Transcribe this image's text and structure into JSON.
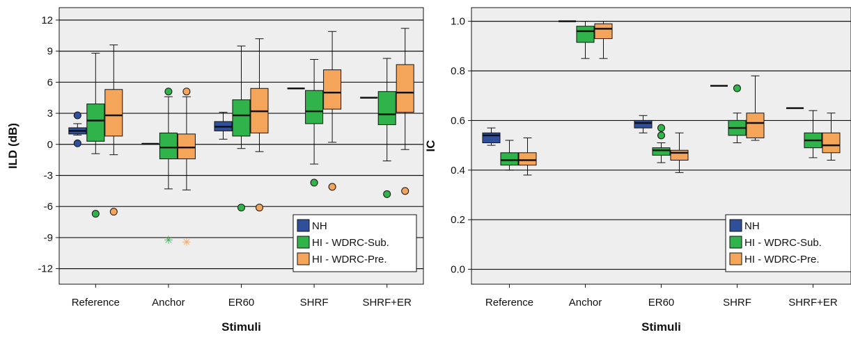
{
  "colors": {
    "nh": "#2f4f9a",
    "sub": "#2fb34a",
    "pre": "#f5a55a",
    "panel_bg": "#eeeeee",
    "grid": "#111111"
  },
  "chart_data": [
    {
      "type": "box",
      "xlabel": "Stimuli",
      "ylabel": "ILD (dB)",
      "ylim": [
        -13.5,
        13.2
      ],
      "yticks": [
        -12,
        -9,
        -6,
        -3,
        0,
        3,
        6,
        9,
        12
      ],
      "ytick_labels": [
        "-12",
        "-9",
        "-6",
        "-3",
        "0",
        "3",
        "6",
        "9",
        "12"
      ],
      "grid": true,
      "legend_position": "bottom-right",
      "categories": [
        "Reference",
        "Anchor",
        "ER60",
        "SHRF",
        "SHRF+ER"
      ],
      "series": [
        {
          "name": "NH",
          "color_key": "nh",
          "boxes": [
            {
              "min": 0.9,
              "q1": 1.0,
              "median": 1.3,
              "q3": 1.6,
              "max": 2.0,
              "outliers": [
                {
                  "value": 2.8,
                  "marker": "circle"
                },
                {
                  "value": 0.1,
                  "marker": "circle"
                }
              ]
            },
            {
              "min": 0.05,
              "q1": 0.05,
              "median": 0.05,
              "q3": 0.05,
              "max": 0.05,
              "outliers": []
            },
            {
              "min": 0.5,
              "q1": 1.3,
              "median": 1.7,
              "q3": 2.2,
              "max": 3.1,
              "outliers": []
            },
            {
              "min": 5.4,
              "q1": 5.4,
              "median": 5.4,
              "q3": 5.4,
              "max": 5.4,
              "outliers": []
            },
            {
              "min": 4.5,
              "q1": 4.5,
              "median": 4.5,
              "q3": 4.5,
              "max": 4.5,
              "outliers": []
            }
          ]
        },
        {
          "name": "HI - WDRC-Sub.",
          "color_key": "sub",
          "boxes": [
            {
              "min": -0.9,
              "q1": 0.3,
              "median": 2.3,
              "q3": 3.9,
              "max": 8.8,
              "outliers": [
                {
                  "value": -6.7,
                  "marker": "circle"
                }
              ]
            },
            {
              "min": -4.3,
              "q1": -1.4,
              "median": -0.3,
              "q3": 1.1,
              "max": 4.6,
              "outliers": [
                {
                  "value": 5.1,
                  "marker": "circle"
                },
                {
                  "value": -9.2,
                  "marker": "star"
                }
              ]
            },
            {
              "min": -0.4,
              "q1": 0.8,
              "median": 2.8,
              "q3": 4.3,
              "max": 9.5,
              "outliers": [
                {
                  "value": -6.1,
                  "marker": "circle"
                }
              ]
            },
            {
              "min": -1.9,
              "q1": 2.0,
              "median": 3.2,
              "q3": 5.2,
              "max": 8.2,
              "outliers": [
                {
                  "value": -3.7,
                  "marker": "circle"
                }
              ]
            },
            {
              "min": -1.6,
              "q1": 1.9,
              "median": 2.9,
              "q3": 5.1,
              "max": 8.3,
              "outliers": [
                {
                  "value": -4.8,
                  "marker": "circle"
                }
              ]
            }
          ]
        },
        {
          "name": "HI - WDRC-Pre.",
          "color_key": "pre",
          "boxes": [
            {
              "min": -1.0,
              "q1": 0.8,
              "median": 2.8,
              "q3": 5.3,
              "max": 9.6,
              "outliers": [
                {
                  "value": -6.5,
                  "marker": "circle"
                }
              ]
            },
            {
              "min": -4.4,
              "q1": -1.4,
              "median": -0.3,
              "q3": 1.0,
              "max": 4.6,
              "outliers": [
                {
                  "value": 5.1,
                  "marker": "circle"
                },
                {
                  "value": -9.4,
                  "marker": "star"
                }
              ]
            },
            {
              "min": -0.7,
              "q1": 1.1,
              "median": 3.2,
              "q3": 5.4,
              "max": 10.2,
              "outliers": [
                {
                  "value": -6.1,
                  "marker": "circle"
                }
              ]
            },
            {
              "min": 0.2,
              "q1": 3.4,
              "median": 5.0,
              "q3": 7.2,
              "max": 10.9,
              "outliers": [
                {
                  "value": -4.1,
                  "marker": "circle"
                }
              ]
            },
            {
              "min": -0.5,
              "q1": 3.1,
              "median": 5.0,
              "q3": 7.7,
              "max": 11.2,
              "outliers": [
                {
                  "value": -4.5,
                  "marker": "circle"
                }
              ]
            }
          ]
        }
      ]
    },
    {
      "type": "box",
      "xlabel": "Stimuli",
      "ylabel": "IC",
      "ylim": [
        -0.06,
        1.055
      ],
      "yticks": [
        0.0,
        0.2,
        0.4,
        0.6,
        0.8,
        1.0
      ],
      "ytick_labels": [
        "0.0",
        "0.2",
        "0.4",
        "0.6",
        "0.8",
        "1.0"
      ],
      "grid": true,
      "legend_position": "bottom-right",
      "categories": [
        "Reference",
        "Anchor",
        "ER60",
        "SHRF",
        "SHRF+ER"
      ],
      "series": [
        {
          "name": "NH",
          "color_key": "nh",
          "boxes": [
            {
              "min": 0.5,
              "q1": 0.51,
              "median": 0.54,
              "q3": 0.55,
              "max": 0.57,
              "outliers": []
            },
            {
              "min": 1.0,
              "q1": 1.0,
              "median": 1.0,
              "q3": 1.0,
              "max": 1.0,
              "outliers": []
            },
            {
              "min": 0.55,
              "q1": 0.57,
              "median": 0.59,
              "q3": 0.6,
              "max": 0.62,
              "outliers": []
            },
            {
              "min": 0.74,
              "q1": 0.74,
              "median": 0.74,
              "q3": 0.74,
              "max": 0.74,
              "outliers": []
            },
            {
              "min": 0.65,
              "q1": 0.65,
              "median": 0.65,
              "q3": 0.65,
              "max": 0.65,
              "outliers": []
            }
          ]
        },
        {
          "name": "HI - WDRC-Sub.",
          "color_key": "sub",
          "boxes": [
            {
              "min": 0.4,
              "q1": 0.42,
              "median": 0.44,
              "q3": 0.47,
              "max": 0.52,
              "outliers": []
            },
            {
              "min": 0.85,
              "q1": 0.915,
              "median": 0.96,
              "q3": 0.98,
              "max": 1.0,
              "outliers": []
            },
            {
              "min": 0.43,
              "q1": 0.46,
              "median": 0.48,
              "q3": 0.49,
              "max": 0.51,
              "outliers": [
                {
                  "value": 0.57,
                  "marker": "circle"
                },
                {
                  "value": 0.54,
                  "marker": "circle"
                }
              ]
            },
            {
              "min": 0.51,
              "q1": 0.54,
              "median": 0.57,
              "q3": 0.6,
              "max": 0.63,
              "outliers": [
                {
                  "value": 0.73,
                  "marker": "circle"
                }
              ]
            },
            {
              "min": 0.45,
              "q1": 0.49,
              "median": 0.52,
              "q3": 0.55,
              "max": 0.64,
              "outliers": []
            }
          ]
        },
        {
          "name": "HI - WDRC-Pre.",
          "color_key": "pre",
          "boxes": [
            {
              "min": 0.38,
              "q1": 0.42,
              "median": 0.44,
              "q3": 0.47,
              "max": 0.53,
              "outliers": []
            },
            {
              "min": 0.85,
              "q1": 0.93,
              "median": 0.97,
              "q3": 0.99,
              "max": 1.0,
              "outliers": []
            },
            {
              "min": 0.39,
              "q1": 0.44,
              "median": 0.47,
              "q3": 0.48,
              "max": 0.55,
              "outliers": []
            },
            {
              "min": 0.52,
              "q1": 0.53,
              "median": 0.59,
              "q3": 0.63,
              "max": 0.78,
              "outliers": []
            },
            {
              "min": 0.44,
              "q1": 0.47,
              "median": 0.5,
              "q3": 0.55,
              "max": 0.63,
              "outliers": []
            }
          ]
        }
      ]
    }
  ]
}
